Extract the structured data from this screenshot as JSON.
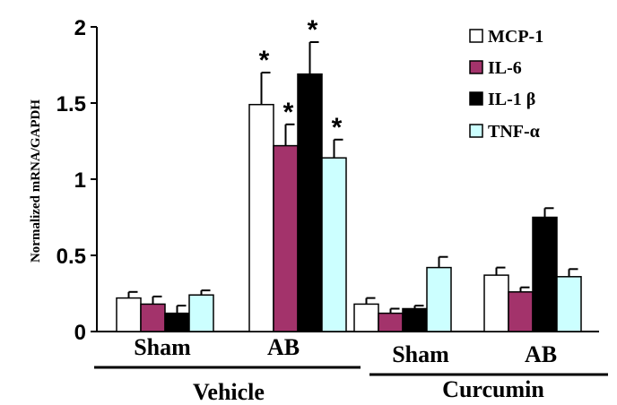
{
  "chart_data": {
    "type": "bar",
    "ylabel": "Normalized mRNA/GAPDH",
    "ylim": [
      0,
      2
    ],
    "yticks": [
      "0",
      "0.5",
      "1",
      "1.5",
      "2"
    ],
    "categories": [
      "Sham",
      "AB",
      "Sham",
      "AB"
    ],
    "groups": [
      {
        "label": "Vehicle",
        "categories": [
          0,
          1
        ]
      },
      {
        "label": "Curcumin",
        "categories": [
          2,
          3
        ]
      }
    ],
    "series": [
      {
        "name": "MCP-1",
        "color": "#ffffff",
        "values": [
          0.22,
          1.49,
          0.18,
          0.37
        ],
        "errors": [
          0.04,
          0.21,
          0.04,
          0.05
        ],
        "significance": [
          "",
          "*",
          "",
          ""
        ]
      },
      {
        "name": "IL-6",
        "color": "#a3336b",
        "values": [
          0.18,
          1.22,
          0.12,
          0.26
        ],
        "errors": [
          0.05,
          0.14,
          0.03,
          0.03
        ],
        "significance": [
          "",
          "*",
          "",
          ""
        ]
      },
      {
        "name": "IL-1 β",
        "color": "#000000",
        "values": [
          0.12,
          1.69,
          0.15,
          0.75
        ],
        "errors": [
          0.05,
          0.21,
          0.02,
          0.06
        ],
        "significance": [
          "",
          "*",
          "",
          ""
        ]
      },
      {
        "name": "TNF-α",
        "color": "#ccffff",
        "values": [
          0.24,
          1.14,
          0.42,
          0.36
        ],
        "errors": [
          0.03,
          0.12,
          0.07,
          0.05
        ],
        "significance": [
          "",
          "*",
          "",
          ""
        ]
      }
    ],
    "grid": false,
    "legend_position": "top-right"
  }
}
